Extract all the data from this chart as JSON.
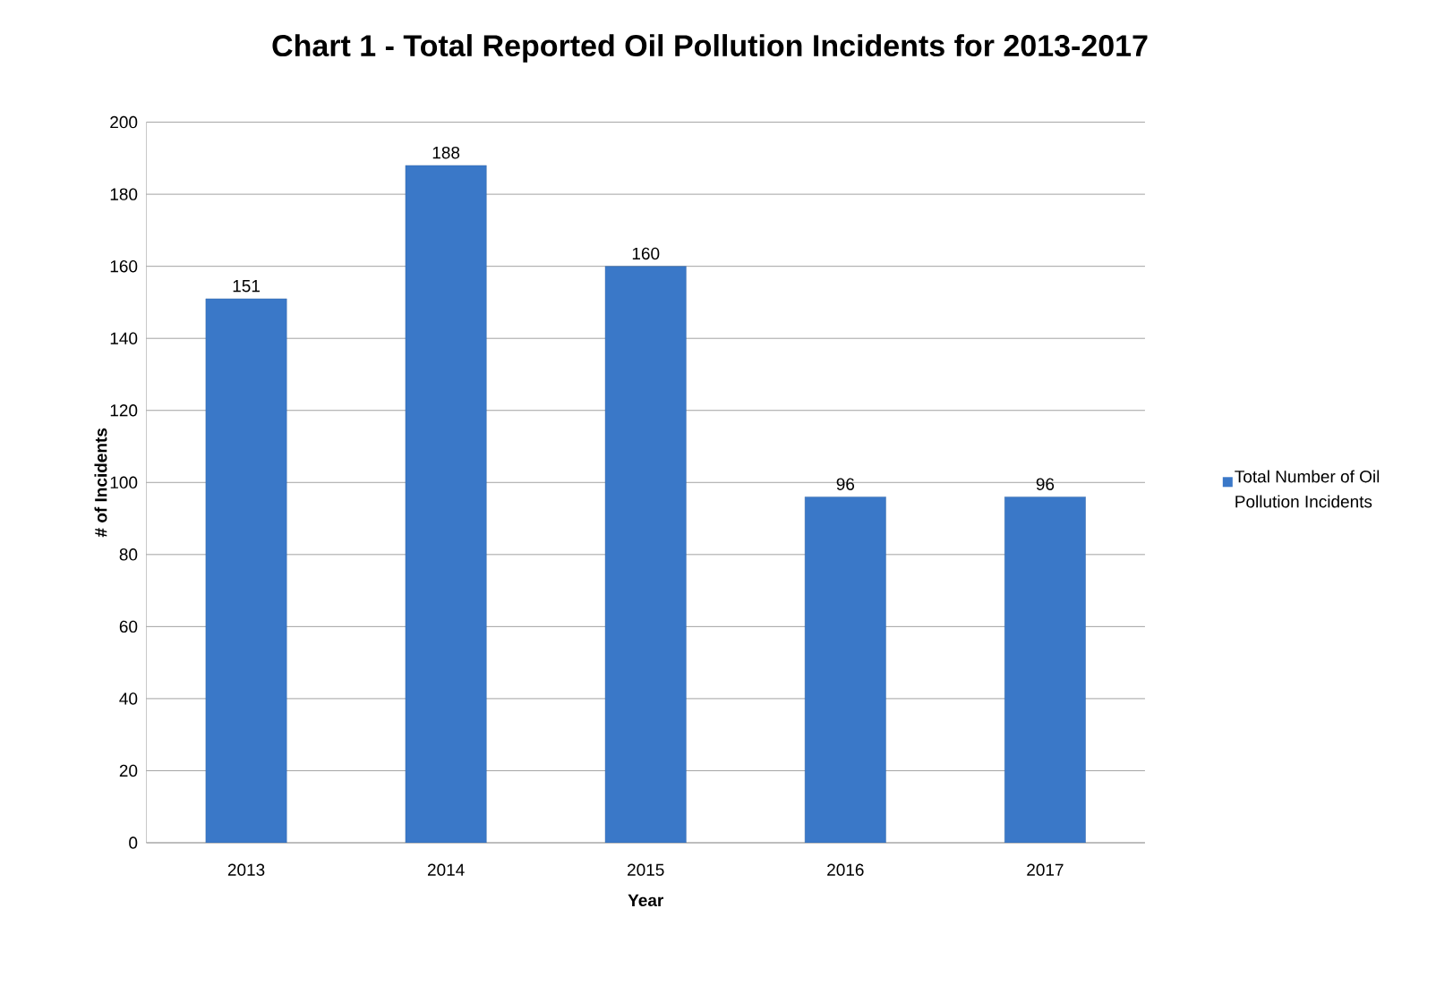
{
  "chart_data": {
    "type": "bar",
    "title": "Chart 1 - Total Reported Oil Pollution Incidents for 2013-2017",
    "xlabel": "Year",
    "ylabel": "# of Incidents",
    "categories": [
      "2013",
      "2014",
      "2015",
      "2016",
      "2017"
    ],
    "series": [
      {
        "name": "Total Number of Oil Pollution Incidents",
        "color": "#3a78c8",
        "values": [
          151,
          188,
          160,
          96,
          96
        ]
      }
    ],
    "ylim": [
      0,
      200
    ],
    "yticks": [
      0,
      20,
      40,
      60,
      80,
      100,
      120,
      140,
      160,
      180,
      200
    ],
    "grid": "y",
    "legend": "right",
    "data_labels": true
  }
}
